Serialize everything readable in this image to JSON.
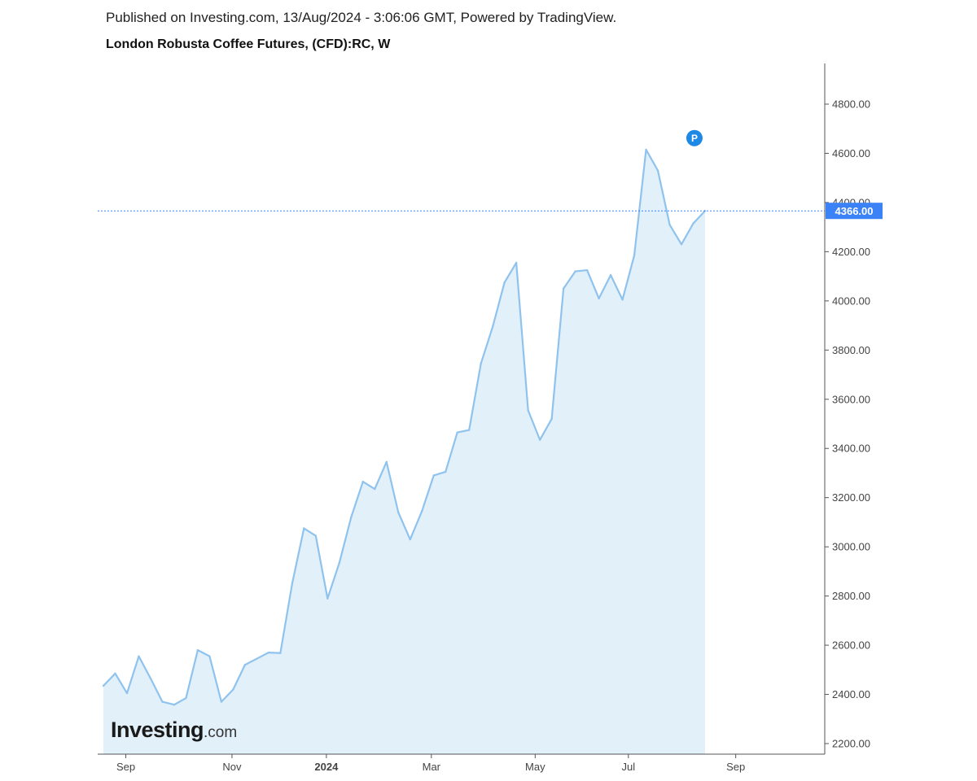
{
  "header": {
    "published": "Published on Investing.com, 13/Aug/2024 - 3:06:06 GMT, Powered by TradingView.",
    "title": "London Robusta Coffee Futures, (CFD):RC, W"
  },
  "logo": {
    "main": "Investing",
    "suffix": ".com"
  },
  "marker_letter": "P",
  "colors": {
    "line": "#8fc3ee",
    "fill": "#e2f0fa",
    "last_price_bg": "#3b82f6",
    "marker": "#1e88e5"
  },
  "chart_data": {
    "type": "area",
    "ylim": [
      2160,
      4900
    ],
    "y_ticks": [
      "2200.00",
      "2400.00",
      "2600.00",
      "2800.00",
      "3000.00",
      "3200.00",
      "3400.00",
      "3600.00",
      "3800.00",
      "4000.00",
      "4200.00",
      "4400.00",
      "4600.00",
      "4800.00"
    ],
    "x_ticks": [
      {
        "label": "Sep",
        "bold": false,
        "index": 1.9
      },
      {
        "label": "Nov",
        "bold": false,
        "index": 10.9
      },
      {
        "label": "2024",
        "bold": true,
        "index": 18.9
      },
      {
        "label": "Mar",
        "bold": false,
        "index": 27.8
      },
      {
        "label": "May",
        "bold": false,
        "index": 36.6
      },
      {
        "label": "Jul",
        "bold": false,
        "index": 44.5
      },
      {
        "label": "Sep",
        "bold": false,
        "index": 53.6
      }
    ],
    "x_range": [
      -0.5,
      61.5
    ],
    "values": [
      2435,
      2485,
      2405,
      2555,
      2465,
      2370,
      2358,
      2385,
      2580,
      2555,
      2370,
      2420,
      2520,
      2545,
      2570,
      2568,
      2850,
      3075,
      3045,
      2790,
      2935,
      3120,
      3265,
      3235,
      3345,
      3140,
      3030,
      3145,
      3290,
      3305,
      3465,
      3475,
      3745,
      3895,
      4075,
      4155,
      3555,
      3435,
      3520,
      4050,
      4120,
      4125,
      4010,
      4105,
      4005,
      4185,
      4615,
      4530,
      4310,
      4230,
      4315,
      4366
    ],
    "last_value": 4366,
    "last_label": "4366.00",
    "marker_index": 50.1,
    "marker_value": 4662
  }
}
